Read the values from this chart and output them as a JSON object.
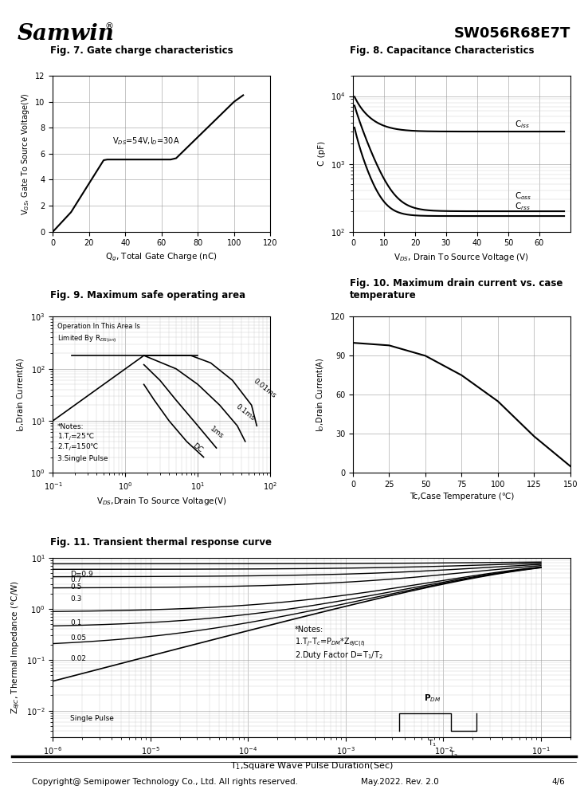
{
  "title_right": "SW056R68E7T",
  "fig7_title": "Fig. 7. Gate charge characteristics",
  "fig8_title": "Fig. 8. Capacitance Characteristics",
  "fig9_title": "Fig. 9. Maximum safe operating area",
  "fig10_title": "Fig. 10. Maximum drain current vs. case\ntemperature",
  "fig11_title": "Fig. 11. Transient thermal response curve",
  "footer": "Copyright@ Semipower Technology Co., Ltd. All rights reserved.",
  "footer_date": "May.2022. Rev. 2.0",
  "footer_page": "4/6",
  "fig7": {
    "x": [
      0,
      10,
      28,
      30,
      65,
      68,
      100,
      105
    ],
    "y": [
      0,
      1.5,
      5.5,
      5.55,
      5.55,
      5.65,
      10.0,
      10.5
    ],
    "xlabel": "Q$_{g}$, Total Gate Charge (nC)",
    "ylabel": "V$_{GS}$, Gate To Source Voltage(V)",
    "xlim": [
      0,
      120
    ],
    "ylim": [
      0,
      12
    ],
    "xticks": [
      0,
      20,
      40,
      60,
      80,
      100,
      120
    ],
    "yticks": [
      0,
      2,
      4,
      6,
      8,
      10,
      12
    ],
    "annotation": "V$_{DS}$=54V,I$_D$=30A",
    "ann_x": 33,
    "ann_y": 6.8
  },
  "fig8": {
    "xlabel": "V$_{DS}$, Drain To Source Voltage (V)",
    "ylabel": "C (pF)",
    "xlim": [
      0,
      70
    ],
    "xticks": [
      0,
      10,
      20,
      30,
      40,
      50,
      60
    ],
    "ciss_label": "C$_{iss}$",
    "coss_label": "C$_{oss}$",
    "crss_label": "C$_{rss}$"
  },
  "fig9": {
    "xlabel": "V$_{DS}$,Drain To Source Voltage(V)",
    "ylabel": "I$_D$,Drain Current(A)",
    "label_001ms": "0.01ms",
    "label_01ms": "0.1ms",
    "label_1ms": "1ms",
    "label_dc": "DC",
    "note1": "*Notes:",
    "note2": "1.T$_j$=25℃",
    "note3": "2.T$_j$=150℃",
    "note4": "3.Single Pulse",
    "area_note": "Operation In This Area Is\nLimited By R$_{DS(on)}$"
  },
  "fig10": {
    "x": [
      0,
      25,
      50,
      75,
      100,
      125,
      150
    ],
    "y": [
      100,
      98,
      90,
      75,
      55,
      28,
      5
    ],
    "xlabel": "Tc,Case Temperature (℃)",
    "ylabel": "I$_D$,Drain Current(A)",
    "xlim": [
      0,
      150
    ],
    "ylim": [
      0,
      120
    ],
    "xticks": [
      0,
      25,
      50,
      75,
      100,
      125,
      150
    ],
    "yticks": [
      0,
      30,
      60,
      90,
      120
    ]
  },
  "fig11": {
    "xlabel": "T$_1$,Square Wave Pulse Duration(Sec)",
    "ylabel": "Z$_{\\theta JC}$, Thermal Impedance (°C/W)",
    "note1": "*Notes:",
    "note2": "1.T$_j$-T$_c$=P$_{DM}$*Z$_{\\theta JC(t)}$",
    "note3": "2.Duty Factor D=T$_1$/T$_2$"
  }
}
